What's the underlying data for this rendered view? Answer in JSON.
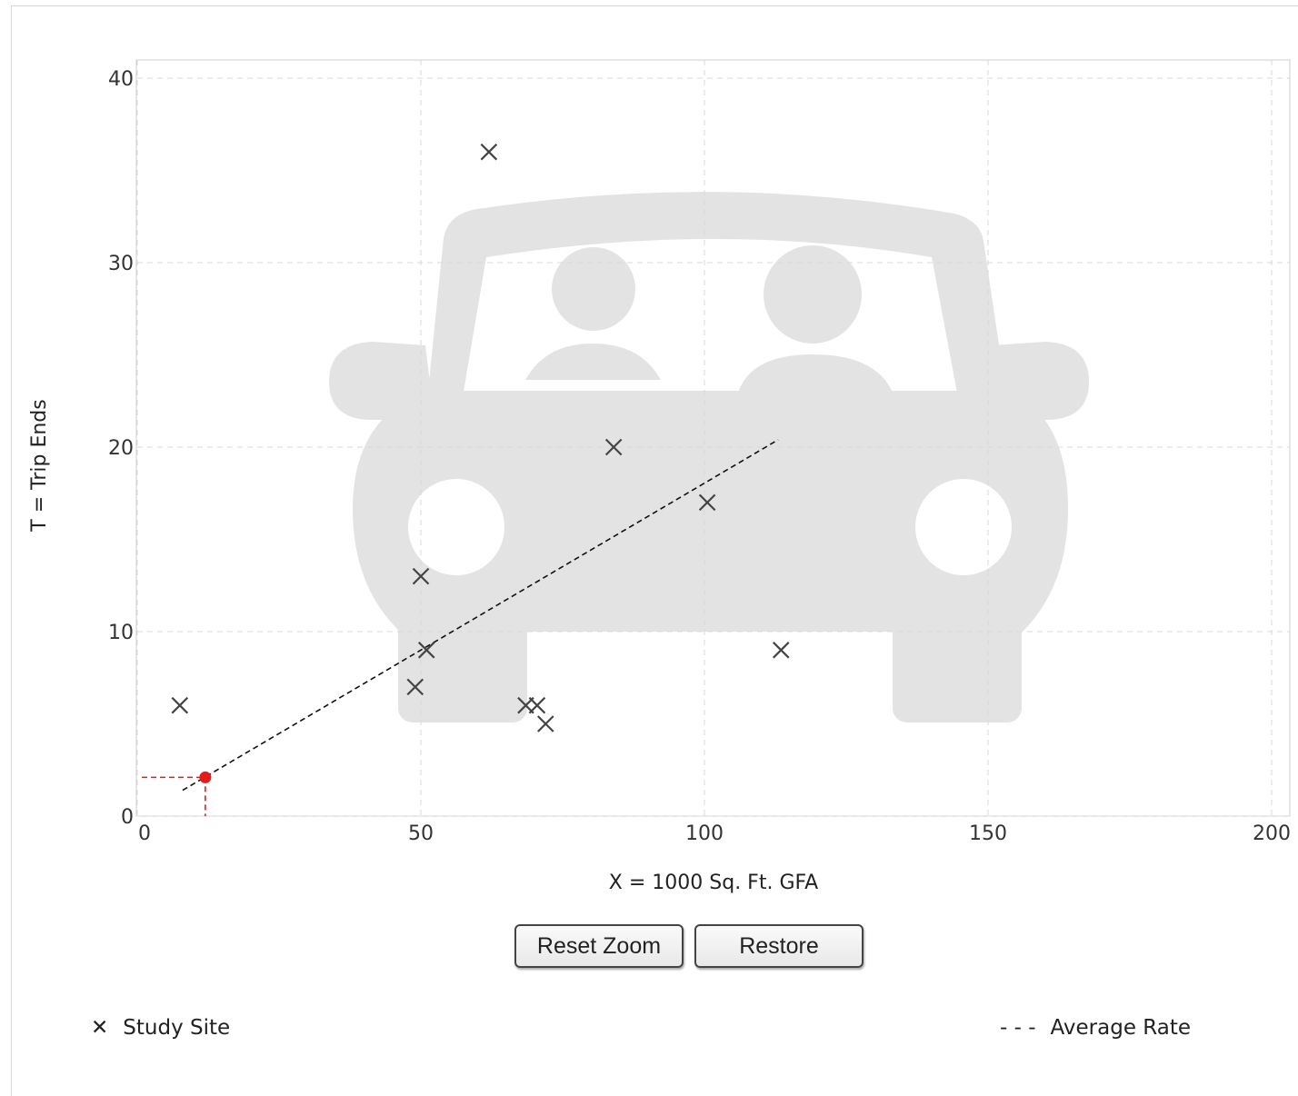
{
  "chart_data": {
    "type": "scatter",
    "xlabel": "X = 1000 Sq. Ft. GFA",
    "ylabel": "T = Trip Ends",
    "xlim": [
      0,
      200
    ],
    "ylim": [
      0,
      40
    ],
    "x_ticks": [
      "0",
      "50",
      "100",
      "150",
      "200"
    ],
    "y_ticks": [
      "0",
      "10",
      "20",
      "30",
      "40"
    ],
    "grid": true,
    "legend_placement": "bottom",
    "series": [
      {
        "name": "Study Site",
        "marker": "x",
        "points": [
          {
            "x": 7.5,
            "y": 6
          },
          {
            "x": 62,
            "y": 36
          },
          {
            "x": 84,
            "y": 20
          },
          {
            "x": 50,
            "y": 13
          },
          {
            "x": 51,
            "y": 9
          },
          {
            "x": 49,
            "y": 7
          },
          {
            "x": 68.5,
            "y": 6
          },
          {
            "x": 70.5,
            "y": 6
          },
          {
            "x": 72,
            "y": 5
          },
          {
            "x": 100.5,
            "y": 17
          },
          {
            "x": 113.5,
            "y": 9
          }
        ]
      },
      {
        "name": "Average Rate",
        "style": "dashed",
        "points": [
          {
            "x": 8,
            "y": 1.4
          },
          {
            "x": 113,
            "y": 20.4
          }
        ]
      }
    ],
    "selected_point": {
      "x": 12,
      "y": 2.1,
      "color": "#e31b1b"
    }
  },
  "buttons": {
    "reset_zoom": "Reset Zoom",
    "restore": "Restore"
  },
  "legend": {
    "study_site_label": "Study Site",
    "study_site_symbol": "✕",
    "average_rate_label": "Average Rate",
    "average_rate_symbol": "- - -"
  },
  "colors": {
    "marker": "#444444",
    "grid": "#d9d9d9",
    "watermark": "#e3e3e3",
    "highlight": "#e31b1b"
  },
  "watermark_icon": "car-with-passengers-icon"
}
